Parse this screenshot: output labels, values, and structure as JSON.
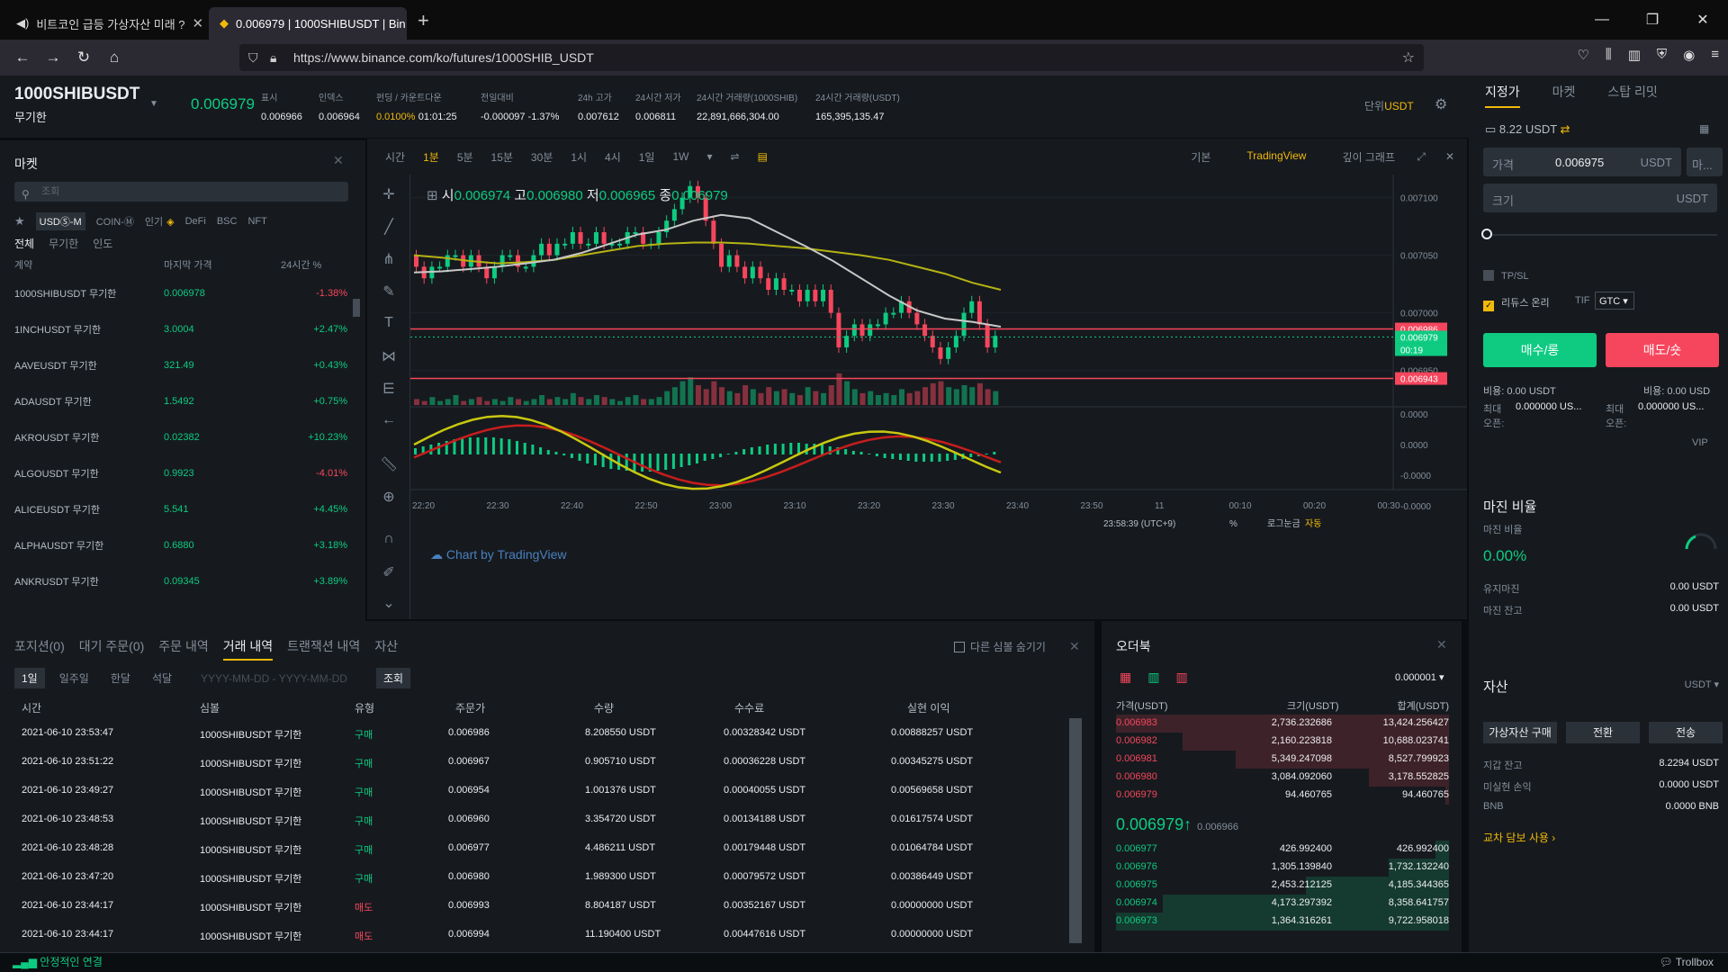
{
  "browser": {
    "tabs": [
      {
        "title": "비트코인 급등 가상자산 미래 ?"
      },
      {
        "title": "0.006979 | 1000SHIBUSDT | Bin"
      }
    ],
    "url": "https://www.binance.com/ko/futures/1000SHIB_USDT"
  },
  "header": {
    "symbol": "1000SHIBUSDT",
    "contract": "무기한",
    "last_price": "0.006979",
    "stats": [
      {
        "label": "표시",
        "value": "0.006966"
      },
      {
        "label": "인덱스",
        "value": "0.006964"
      },
      {
        "label": "펀딩 / 카운트다운",
        "value": "0.0100%",
        "value2": "01:01:25"
      },
      {
        "label": "전일대비",
        "value": "-0.000097 -1.37%"
      },
      {
        "label": "24h 고가",
        "value": "0.007612"
      },
      {
        "label": "24시간 저가",
        "value": "0.006811"
      },
      {
        "label": "24시간 거래량(1000SHIB)",
        "value": "22,891,666,304.00"
      },
      {
        "label": "24시간 거래량(USDT)",
        "value": "165,395,135.47"
      }
    ],
    "unit_label": "단위",
    "unit_value": "USDT"
  },
  "market": {
    "title": "마켓",
    "search_placeholder": "조회",
    "categories": [
      "USDⓈ-M",
      "COIN-Ⓜ",
      "인기",
      "DeFi",
      "BSC",
      "NFT"
    ],
    "subfilters": [
      "전체",
      "무기한",
      "인도"
    ],
    "columns": [
      "계약",
      "마지막 가격",
      "24시간 %"
    ],
    "rows": [
      {
        "symbol": "1000SHIBUSDT 무기한",
        "price": "0.006978",
        "change": "-1.38%",
        "dir": "dn"
      },
      {
        "symbol": "1INCHUSDT 무기한",
        "price": "3.0004",
        "change": "+2.47%",
        "dir": "up"
      },
      {
        "symbol": "AAVEUSDT 무기한",
        "price": "321.49",
        "change": "+0.43%",
        "dir": "up"
      },
      {
        "symbol": "ADAUSDT 무기한",
        "price": "1.5492",
        "change": "+0.75%",
        "dir": "up"
      },
      {
        "symbol": "AKROUSDT 무기한",
        "price": "0.02382",
        "change": "+10.23%",
        "dir": "up"
      },
      {
        "symbol": "ALGOUSDT 무기한",
        "price": "0.9923",
        "change": "-4.01%",
        "dir": "dn"
      },
      {
        "symbol": "ALICEUSDT 무기한",
        "price": "5.541",
        "change": "+4.45%",
        "dir": "up"
      },
      {
        "symbol": "ALPHAUSDT 무기한",
        "price": "0.6880",
        "change": "+3.18%",
        "dir": "up"
      },
      {
        "symbol": "ANKRUSDT 무기한",
        "price": "0.09345",
        "change": "+3.89%",
        "dir": "up"
      }
    ]
  },
  "chart": {
    "intervals": [
      "시간",
      "1분",
      "5분",
      "15분",
      "30분",
      "1시",
      "4시",
      "1일",
      "1W"
    ],
    "active_interval": "1분",
    "views": [
      "기본",
      "TradingView",
      "깊이 그래프"
    ],
    "active_view": "TradingView",
    "ohlc": {
      "o": "0.006974",
      "h": "0.006980",
      "l": "0.006965",
      "c": "0.006979"
    },
    "price_ticks": [
      "0.007100",
      "0.007050",
      "0.007000",
      "0.006950"
    ],
    "markers": [
      {
        "price": "0.006986",
        "color": "#f6465d"
      },
      {
        "price": "0.006979",
        "color": "#0ecb81"
      },
      {
        "price": "00:19",
        "color": "#0ecb81"
      },
      {
        "price": "0.006943",
        "color": "#f6465d"
      }
    ],
    "time_ticks": [
      "22:20",
      "22:30",
      "22:40",
      "22:50",
      "23:00",
      "23:10",
      "23:20",
      "23:30",
      "23:40",
      "23:50",
      "11",
      "00:10",
      "00:20",
      "00:30"
    ],
    "osc_ticks": [
      "0.0000",
      "0.0000",
      "-0.0000",
      "-0.0000"
    ],
    "watermark": "Chart by TradingView",
    "clock": "23:58:39 (UTC+9)",
    "bottom_opts": [
      "%",
      "로그눈금",
      "자동"
    ]
  },
  "chart_data": {
    "type": "candlestick",
    "ylim": [
      0.00692,
      0.00712
    ],
    "x_start": "22:20",
    "x_end": "23:58",
    "candles": [
      [
        0.00705,
        0.00704
      ],
      [
        0.00704,
        0.00703
      ],
      [
        0.00703,
        0.00704
      ],
      [
        0.00704,
        0.00704
      ],
      [
        0.00704,
        0.00705
      ],
      [
        0.00705,
        0.00705
      ],
      [
        0.00705,
        0.00704
      ],
      [
        0.00704,
        0.00705
      ],
      [
        0.00705,
        0.00704
      ],
      [
        0.00704,
        0.00703
      ],
      [
        0.00703,
        0.00704
      ],
      [
        0.00704,
        0.00705
      ],
      [
        0.00705,
        0.00705
      ],
      [
        0.00705,
        0.00704
      ],
      [
        0.00704,
        0.00704
      ],
      [
        0.00704,
        0.00705
      ],
      [
        0.00705,
        0.00706
      ],
      [
        0.00706,
        0.00705
      ],
      [
        0.00705,
        0.00706
      ],
      [
        0.00706,
        0.00706
      ],
      [
        0.00706,
        0.00707
      ],
      [
        0.00707,
        0.00706
      ],
      [
        0.00706,
        0.00706
      ],
      [
        0.00706,
        0.00707
      ],
      [
        0.00707,
        0.00706
      ],
      [
        0.00706,
        0.00706
      ],
      [
        0.00706,
        0.00706
      ],
      [
        0.00706,
        0.00707
      ],
      [
        0.00707,
        0.00707
      ],
      [
        0.00707,
        0.00706
      ],
      [
        0.00706,
        0.00706
      ],
      [
        0.00706,
        0.00707
      ],
      [
        0.00707,
        0.00708
      ],
      [
        0.00708,
        0.00709
      ],
      [
        0.00709,
        0.0071
      ],
      [
        0.0071,
        0.00711
      ],
      [
        0.00711,
        0.0071
      ],
      [
        0.0071,
        0.00708
      ],
      [
        0.00708,
        0.00706
      ],
      [
        0.00706,
        0.00704
      ],
      [
        0.00704,
        0.00705
      ],
      [
        0.00705,
        0.00704
      ],
      [
        0.00704,
        0.00703
      ],
      [
        0.00703,
        0.00704
      ],
      [
        0.00704,
        0.00703
      ],
      [
        0.00703,
        0.00702
      ],
      [
        0.00702,
        0.00703
      ],
      [
        0.00703,
        0.00702
      ],
      [
        0.00702,
        0.00702
      ],
      [
        0.00702,
        0.00701
      ],
      [
        0.00701,
        0.00702
      ],
      [
        0.00702,
        0.00701
      ],
      [
        0.00701,
        0.00702
      ],
      [
        0.00702,
        0.007
      ],
      [
        0.007,
        0.00697
      ],
      [
        0.00697,
        0.00698
      ],
      [
        0.00698,
        0.00699
      ],
      [
        0.00699,
        0.00698
      ],
      [
        0.00698,
        0.00699
      ],
      [
        0.00699,
        0.00699
      ],
      [
        0.00699,
        0.007
      ],
      [
        0.007,
        0.007
      ],
      [
        0.007,
        0.00701
      ],
      [
        0.00701,
        0.007
      ],
      [
        0.007,
        0.00699
      ],
      [
        0.00699,
        0.00698
      ],
      [
        0.00698,
        0.00697
      ],
      [
        0.00697,
        0.00696
      ],
      [
        0.00696,
        0.00697
      ],
      [
        0.00697,
        0.00698
      ],
      [
        0.00698,
        0.007
      ],
      [
        0.007,
        0.00701
      ],
      [
        0.00701,
        0.00699
      ],
      [
        0.00699,
        0.00697
      ],
      [
        0.00697,
        0.00698
      ]
    ],
    "volume": [
      3,
      2,
      4,
      2,
      3,
      5,
      2,
      3,
      4,
      2,
      3,
      2,
      4,
      3,
      2,
      3,
      5,
      3,
      4,
      3,
      6,
      4,
      3,
      5,
      4,
      3,
      2,
      4,
      5,
      3,
      3,
      4,
      7,
      9,
      12,
      14,
      10,
      8,
      12,
      9,
      7,
      6,
      10,
      8,
      6,
      9,
      7,
      8,
      6,
      5,
      9,
      7,
      6,
      10,
      16,
      12,
      8,
      6,
      7,
      5,
      6,
      5,
      8,
      6,
      7,
      9,
      11,
      12,
      9,
      8,
      10,
      9,
      11,
      8,
      7
    ],
    "ma_white": [
      0.007035,
      0.007036,
      0.007038,
      0.00704,
      0.007043,
      0.007046,
      0.007052,
      0.00706,
      0.007068,
      0.007072,
      0.00708,
      0.007085,
      0.007082,
      0.00707,
      0.007058,
      0.007045,
      0.00703,
      0.007015,
      0.007002,
      0.006995,
      0.006992,
      0.006988
    ],
    "ma_yellow": [
      0.00705,
      0.007048,
      0.007045,
      0.007043,
      0.007044,
      0.007046,
      0.00705,
      0.007054,
      0.007058,
      0.00706,
      0.007061,
      0.007061,
      0.00706,
      0.007058,
      0.007056,
      0.007053,
      0.00705,
      0.007046,
      0.00704,
      0.007034,
      0.007026,
      0.00702
    ]
  },
  "bottom": {
    "tabs": [
      "포지션(0)",
      "대기 주문(0)",
      "주문 내역",
      "거래 내역",
      "트랜잭션 내역",
      "자산"
    ],
    "active_tab": "거래 내역",
    "hide_label": "다른 심볼 숨기기",
    "periods": [
      "1일",
      "일주일",
      "한달",
      "석달"
    ],
    "date_placeholder": "YYYY-MM-DD - YYYY-MM-DD",
    "search_btn": "조회",
    "columns": [
      "시간",
      "심볼",
      "유형",
      "주문가",
      "수량",
      "수수료",
      "실현 이익"
    ],
    "rows": [
      {
        "time": "2021-06-10 23:53:47",
        "symbol": "1000SHIBUSDT 무기한",
        "side": "구매",
        "dir": "up",
        "price": "0.006986",
        "qty": "8.208550 USDT",
        "fee": "0.00328342 USDT",
        "pnl": "0.00888257 USDT"
      },
      {
        "time": "2021-06-10 23:51:22",
        "symbol": "1000SHIBUSDT 무기한",
        "side": "구매",
        "dir": "up",
        "price": "0.006967",
        "qty": "0.905710 USDT",
        "fee": "0.00036228 USDT",
        "pnl": "0.00345275 USDT"
      },
      {
        "time": "2021-06-10 23:49:27",
        "symbol": "1000SHIBUSDT 무기한",
        "side": "구매",
        "dir": "up",
        "price": "0.006954",
        "qty": "1.001376 USDT",
        "fee": "0.00040055 USDT",
        "pnl": "0.00569658 USDT"
      },
      {
        "time": "2021-06-10 23:48:53",
        "symbol": "1000SHIBUSDT 무기한",
        "side": "구매",
        "dir": "up",
        "price": "0.006960",
        "qty": "3.354720 USDT",
        "fee": "0.00134188 USDT",
        "pnl": "0.01617574 USDT"
      },
      {
        "time": "2021-06-10 23:48:28",
        "symbol": "1000SHIBUSDT 무기한",
        "side": "구매",
        "dir": "up",
        "price": "0.006977",
        "qty": "4.486211 USDT",
        "fee": "0.00179448 USDT",
        "pnl": "0.01064784 USDT"
      },
      {
        "time": "2021-06-10 23:47:20",
        "symbol": "1000SHIBUSDT 무기한",
        "side": "구매",
        "dir": "up",
        "price": "0.006980",
        "qty": "1.989300 USDT",
        "fee": "0.00079572 USDT",
        "pnl": "0.00386449 USDT"
      },
      {
        "time": "2021-06-10 23:44:17",
        "symbol": "1000SHIBUSDT 무기한",
        "side": "매도",
        "dir": "dn",
        "price": "0.006993",
        "qty": "8.804187 USDT",
        "fee": "0.00352167 USDT",
        "pnl": "0.00000000 USDT"
      },
      {
        "time": "2021-06-10 23:44:17",
        "symbol": "1000SHIBUSDT 무기한",
        "side": "매도",
        "dir": "dn",
        "price": "0.006994",
        "qty": "11.190400 USDT",
        "fee": "0.00447616 USDT",
        "pnl": "0.00000000 USDT"
      }
    ]
  },
  "orderbook": {
    "title": "오더북",
    "precision": "0.000001",
    "columns": [
      "가격(USDT)",
      "크기(USDT)",
      "합계(USDT)"
    ],
    "asks": [
      {
        "p": "0.006983",
        "s": "2,736.232686",
        "t": "13,424.256427",
        "depth": 1.0
      },
      {
        "p": "0.006982",
        "s": "2,160.223818",
        "t": "10,688.023741",
        "depth": 0.8
      },
      {
        "p": "0.006981",
        "s": "5,349.247098",
        "t": "8,527.799923",
        "depth": 0.64
      },
      {
        "p": "0.006980",
        "s": "3,084.092060",
        "t": "3,178.552825",
        "depth": 0.24
      },
      {
        "p": "0.006979",
        "s": "94.460765",
        "t": "94.460765",
        "depth": 0.01
      }
    ],
    "mid_price": "0.006979",
    "mid_mark": "0.006966",
    "bids": [
      {
        "p": "0.006977",
        "s": "426.992400",
        "t": "426.992400",
        "depth": 0.04
      },
      {
        "p": "0.006976",
        "s": "1,305.139840",
        "t": "1,732.132240",
        "depth": 0.18
      },
      {
        "p": "0.006975",
        "s": "2,453.212125",
        "t": "4,185.344365",
        "depth": 0.43
      },
      {
        "p": "0.006974",
        "s": "4,173.297392",
        "t": "8,358.641757",
        "depth": 0.86
      },
      {
        "p": "0.006973",
        "s": "1,364.316261",
        "t": "9,722.958018",
        "depth": 1.0
      }
    ]
  },
  "order": {
    "tabs": [
      "지정가",
      "마켓",
      "스탑 리밋"
    ],
    "active": "지정가",
    "balance": "8.22 USDT",
    "price_label": "가격",
    "price_value": "0.006975",
    "price_unit": "USDT",
    "last_btn": "마...",
    "size_label": "크기",
    "size_unit": "USDT",
    "tpsl": "TP/SL",
    "reduce_only": "리듀스 온리",
    "tif_label": "TIF",
    "tif_value": "GTC",
    "buy": "매수/롱",
    "sell": "매도/숏",
    "cost_buy": "비용: 0.00 USDT",
    "cost_sell": "비용: 0.00 USD",
    "max_label": "최대 오픈:",
    "max_buy": "0.000000 US...",
    "max_sell": "0.000000 US...",
    "vip": "VIP"
  },
  "margin": {
    "title": "마진 비율",
    "ratio_label": "마진 비율",
    "ratio_value": "0.00%",
    "maint_label": "유지마진",
    "maint_value": "0.00 USDT",
    "bal_label": "마진 잔고",
    "bal_value": "0.00 USDT"
  },
  "assets": {
    "title": "자산",
    "currency": "USDT",
    "buttons": [
      "가상자산 구매",
      "전환",
      "전송"
    ],
    "wallet_label": "지갑 잔고",
    "wallet_value": "8.2294 USDT",
    "unreal_label": "미실현 손익",
    "unreal_value": "0.0000 USDT",
    "bnb_label": "BNB",
    "bnb_value": "0.0000 BNB",
    "cross": "교차 담보 사용"
  },
  "status": {
    "conn": "안정적인 연결",
    "trollbox": "Trollbox"
  }
}
